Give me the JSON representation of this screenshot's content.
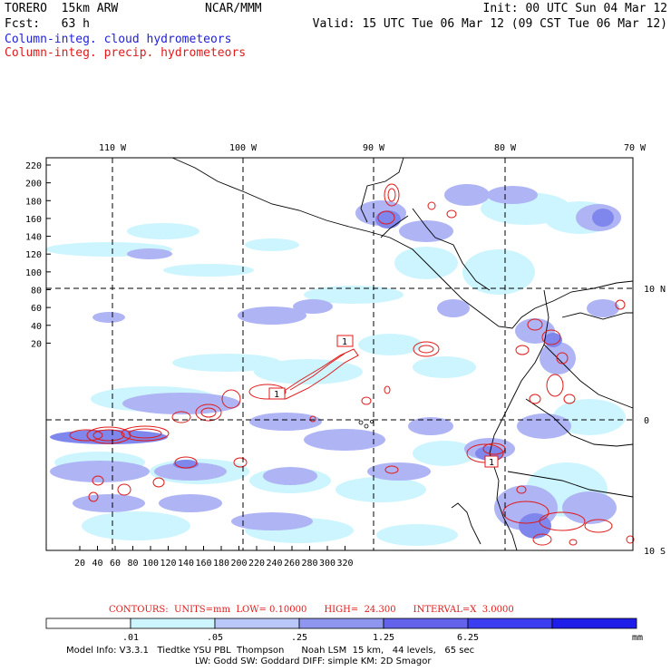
{
  "header": {
    "model": "TORERO  15km ARW",
    "org": "NCAR/MMM",
    "init": "Init: 00 UTC Sun 04 Mar 12",
    "fcst": "Fcst:   63 h",
    "valid": "Valid: 15 UTC Tue 06 Mar 12 (09 CST Tue 06 Mar 12)",
    "field_cloud": "Column-integ. cloud hydrometeors",
    "field_precip": "Column-integ. precip. hydrometeors"
  },
  "axes": {
    "top_lon_labels": [
      "110 W",
      "100 W",
      "90 W",
      "80 W",
      "70 W"
    ],
    "right_lat_labels": [
      "10 N",
      "0",
      "10 S"
    ],
    "y_ticks": [
      "220",
      "200",
      "180",
      "160",
      "140",
      "120",
      "100",
      "80",
      "60",
      "40",
      "20"
    ],
    "x_ticks": [
      "20",
      "40",
      "60",
      "80",
      "100",
      "120",
      "140",
      "160",
      "180",
      "200",
      "220",
      "240",
      "260",
      "280",
      "300",
      "320"
    ]
  },
  "contour_labels": [
    "1",
    "1",
    "1"
  ],
  "contours_info": "CONTOURS:  UNITS=mm  LOW= 0.10000      HIGH=  24.300      INTERVAL=X  3.0000",
  "colorbar": {
    "ticks": [
      ".01",
      ".05",
      ".25",
      "1.25",
      "6.25"
    ],
    "unit": "mm",
    "colors": [
      "#ffffff",
      "#cdf5ff",
      "#b9c8f8",
      "#8e96f0",
      "#6262ea",
      "#3c3cf0",
      "#1e1ee8"
    ]
  },
  "footer": {
    "line1": "Model Info: V3.3.1   Tiedtke YSU PBL  Thompson      Noah LSM  15 km,   44 levels,   65 sec",
    "line2": "LW: Godd SW: Goddard DIFF: simple KM: 2D Smagor"
  }
}
